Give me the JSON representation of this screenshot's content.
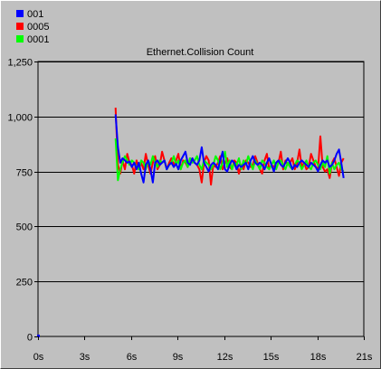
{
  "chart_data": {
    "type": "line",
    "title": "Ethernet.Collision Count",
    "xlabel": "",
    "ylabel": "",
    "xlim": [
      0,
      21
    ],
    "ylim": [
      0,
      1250
    ],
    "x_ticks": [
      0,
      3,
      6,
      9,
      12,
      15,
      18,
      21
    ],
    "x_tick_labels": [
      "0s",
      "3s",
      "6s",
      "9s",
      "12s",
      "15s",
      "18s",
      "21s"
    ],
    "y_ticks": [
      0,
      250,
      500,
      750,
      1000,
      1250
    ],
    "y_tick_labels": [
      "0",
      "250",
      "500",
      "750",
      "1,000",
      "1,250"
    ],
    "grid": "horizontal",
    "legend_position": "top-left",
    "series": [
      {
        "name": "001",
        "color": "#0000ff",
        "x": [
          5,
          5.15,
          5.3,
          5.45,
          5.6,
          5.75,
          5.9,
          6.05,
          6.2,
          6.35,
          6.5,
          6.65,
          6.8,
          6.95,
          7.1,
          7.25,
          7.4,
          7.55,
          7.7,
          7.85,
          8.0,
          8.15,
          8.3,
          8.45,
          8.6,
          8.75,
          8.9,
          9.05,
          9.2,
          9.35,
          9.5,
          9.65,
          9.8,
          9.95,
          10.1,
          10.25,
          10.4,
          10.55,
          10.7,
          10.85,
          11.0,
          11.15,
          11.3,
          11.45,
          11.6,
          11.75,
          11.9,
          12.05,
          12.2,
          12.35,
          12.5,
          12.65,
          12.8,
          12.95,
          13.1,
          13.25,
          13.4,
          13.55,
          13.7,
          13.85,
          14.0,
          14.15,
          14.3,
          14.45,
          14.6,
          14.75,
          14.9,
          15.05,
          15.2,
          15.35,
          15.5,
          15.65,
          15.8,
          15.95,
          16.1,
          16.25,
          16.4,
          16.55,
          16.7,
          16.85,
          17.0,
          17.15,
          17.3,
          17.45,
          17.6,
          17.75,
          17.9,
          18.05,
          18.2,
          18.35,
          18.5,
          18.65,
          18.8,
          18.95,
          19.1,
          19.25,
          19.4,
          19.55,
          19.7
        ],
        "y": [
          1010,
          860,
          790,
          810,
          800,
          790,
          795,
          770,
          790,
          760,
          790,
          740,
          700,
          780,
          800,
          760,
          700,
          790,
          800,
          780,
          790,
          800,
          760,
          780,
          790,
          770,
          785,
          760,
          800,
          820,
          840,
          790,
          780,
          810,
          790,
          780,
          800,
          860,
          790,
          770,
          750,
          780,
          790,
          780,
          760,
          800,
          840,
          760,
          750,
          780,
          800,
          790,
          760,
          780,
          770,
          780,
          790,
          760,
          800,
          820,
          790,
          780,
          790,
          780,
          760,
          790,
          810,
          780,
          750,
          790,
          800,
          780,
          770,
          790,
          810,
          790,
          760,
          780,
          770,
          790,
          800,
          790,
          780,
          770,
          790,
          780,
          770,
          750,
          780,
          800,
          790,
          800,
          770,
          780,
          800,
          830,
          850,
          790,
          720
        ]
      },
      {
        "name": "0005",
        "color": "#ff0000",
        "x": [
          5,
          5.15,
          5.3,
          5.45,
          5.6,
          5.75,
          5.9,
          6.05,
          6.2,
          6.35,
          6.5,
          6.65,
          6.8,
          6.95,
          7.1,
          7.25,
          7.4,
          7.55,
          7.7,
          7.85,
          8.0,
          8.15,
          8.3,
          8.45,
          8.6,
          8.75,
          8.9,
          9.05,
          9.2,
          9.35,
          9.5,
          9.65,
          9.8,
          9.95,
          10.1,
          10.25,
          10.4,
          10.55,
          10.7,
          10.85,
          11.0,
          11.15,
          11.3,
          11.45,
          11.6,
          11.75,
          11.9,
          12.05,
          12.2,
          12.35,
          12.5,
          12.65,
          12.8,
          12.95,
          13.1,
          13.25,
          13.4,
          13.55,
          13.7,
          13.85,
          14.0,
          14.15,
          14.3,
          14.45,
          14.6,
          14.75,
          14.9,
          15.05,
          15.2,
          15.35,
          15.5,
          15.65,
          15.8,
          15.95,
          16.1,
          16.25,
          16.4,
          16.55,
          16.7,
          16.85,
          17.0,
          17.15,
          17.3,
          17.45,
          17.6,
          17.75,
          17.9,
          18.05,
          18.2,
          18.35,
          18.5,
          18.65,
          18.8,
          18.95,
          19.1,
          19.25,
          19.4,
          19.55,
          19.7
        ],
        "y": [
          1040,
          780,
          740,
          800,
          760,
          830,
          790,
          780,
          740,
          800,
          760,
          790,
          760,
          830,
          780,
          740,
          790,
          820,
          760,
          780,
          840,
          800,
          760,
          790,
          810,
          780,
          800,
          830,
          760,
          800,
          790,
          770,
          810,
          800,
          790,
          780,
          760,
          700,
          790,
          820,
          800,
          690,
          780,
          770,
          790,
          820,
          760,
          790,
          810,
          770,
          760,
          800,
          790,
          740,
          780,
          760,
          800,
          790,
          770,
          780,
          820,
          790,
          760,
          740,
          800,
          830,
          760,
          780,
          770,
          790,
          790,
          840,
          760,
          800,
          780,
          790,
          810,
          760,
          790,
          850,
          770,
          790,
          760,
          770,
          830,
          800,
          770,
          760,
          910,
          770,
          750,
          760,
          720,
          790,
          810,
          770,
          730,
          790,
          810
        ]
      },
      {
        "name": "0001",
        "color": "#00ff00",
        "x": [
          5,
          5.15,
          5.3,
          5.45,
          5.6,
          5.75,
          5.9,
          6.05,
          6.2,
          6.35,
          6.5,
          6.65,
          6.8,
          6.95,
          7.1,
          7.25,
          7.4,
          7.55,
          7.7,
          7.85,
          8.0,
          8.15,
          8.3,
          8.45,
          8.6,
          8.75,
          8.9,
          9.05,
          9.2,
          9.35,
          9.5,
          9.65,
          9.8,
          9.95,
          10.1,
          10.25,
          10.4,
          10.55,
          10.7,
          10.85,
          11.0,
          11.15,
          11.3,
          11.45,
          11.6,
          11.75,
          11.9,
          12.05,
          12.2,
          12.35,
          12.5,
          12.65,
          12.8,
          12.95,
          13.1,
          13.25,
          13.4,
          13.55,
          13.7,
          13.85,
          14.0,
          14.15,
          14.3,
          14.45,
          14.6,
          14.75,
          14.9,
          15.05,
          15.2,
          15.35,
          15.5,
          15.65,
          15.8,
          15.95,
          16.1,
          16.25,
          16.4,
          16.55,
          16.7,
          16.85,
          17.0,
          17.15,
          17.3,
          17.45,
          17.6,
          17.75,
          17.9,
          18.05,
          18.2,
          18.35,
          18.5,
          18.65,
          18.8,
          18.95,
          19.1,
          19.25,
          19.4,
          19.55,
          19.7
        ],
        "y": [
          900,
          710,
          760,
          790,
          820,
          800,
          780,
          800,
          790,
          770,
          760,
          800,
          790,
          760,
          800,
          780,
          820,
          790,
          770,
          800,
          790,
          800,
          760,
          780,
          790,
          820,
          780,
          800,
          760,
          790,
          800,
          770,
          810,
          790,
          800,
          820,
          780,
          760,
          800,
          790,
          780,
          760,
          780,
          820,
          800,
          760,
          790,
          840,
          770,
          800,
          760,
          790,
          780,
          810,
          760,
          800,
          780,
          820,
          790,
          760,
          800,
          780,
          760,
          800,
          790,
          770,
          760,
          780,
          800,
          760,
          790,
          800,
          780,
          760,
          790,
          770,
          760,
          780,
          800,
          790,
          760,
          780,
          800,
          770,
          760,
          790,
          800,
          780,
          760,
          790,
          770,
          820,
          740,
          790,
          760,
          780,
          790,
          760,
          750
        ]
      }
    ]
  }
}
